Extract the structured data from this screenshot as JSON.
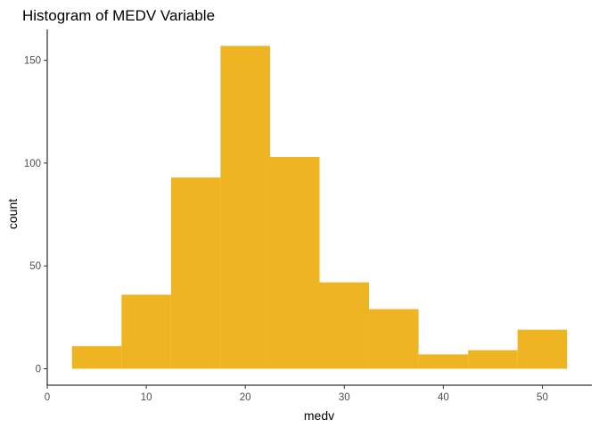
{
  "chart_data": {
    "type": "bar",
    "title": "Histogram of MEDV Variable",
    "xlabel": "medv",
    "ylabel": "count",
    "bin_edges": [
      2.5,
      7.5,
      12.5,
      17.5,
      22.5,
      27.5,
      32.5,
      37.5,
      42.5,
      47.5,
      52.5
    ],
    "values": [
      11,
      36,
      93,
      157,
      103,
      42,
      29,
      7,
      9,
      19
    ],
    "xlim": [
      0,
      55
    ],
    "ylim": [
      -8,
      165
    ],
    "x_ticks": [
      0,
      10,
      20,
      30,
      40,
      50
    ],
    "x_tick_labels": [
      "0",
      "10",
      "20",
      "30",
      "40",
      "50"
    ],
    "y_ticks": [
      0,
      50,
      100,
      150
    ],
    "y_tick_labels": [
      "0",
      "50",
      "100",
      "150"
    ],
    "bar_color": "#EEB422",
    "grid": false,
    "legend": "none"
  }
}
